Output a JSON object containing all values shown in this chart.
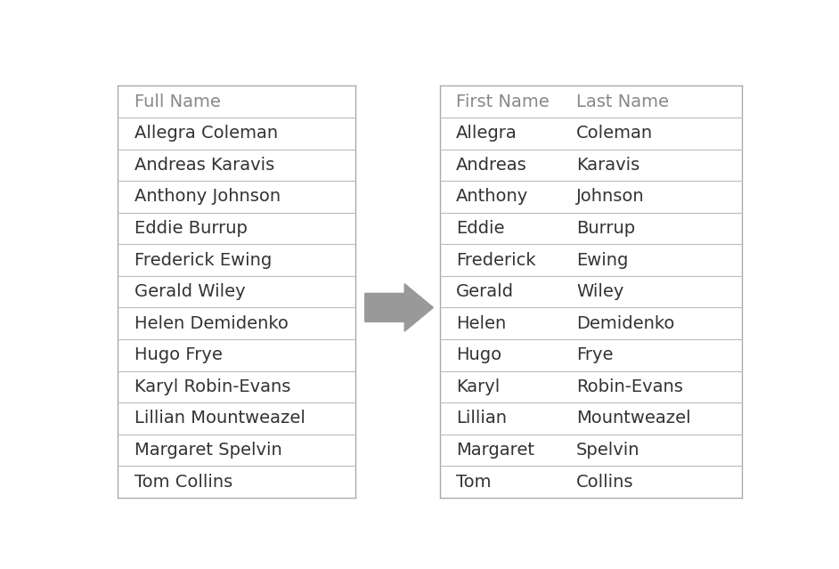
{
  "full_names": [
    "Allegra Coleman",
    "Andreas Karavis",
    "Anthony Johnson",
    "Eddie Burrup",
    "Frederick Ewing",
    "Gerald Wiley",
    "Helen Demidenko",
    "Hugo Frye",
    "Karyl Robin-Evans",
    "Lillian Mountweazel",
    "Margaret Spelvin",
    "Tom Collins"
  ],
  "first_names": [
    "Allegra",
    "Andreas",
    "Anthony",
    "Eddie",
    "Frederick",
    "Gerald",
    "Helen",
    "Hugo",
    "Karyl",
    "Lillian",
    "Margaret",
    "Tom"
  ],
  "last_names": [
    "Coleman",
    "Karavis",
    "Johnson",
    "Burrup",
    "Ewing",
    "Wiley",
    "Demidenko",
    "Frye",
    "Robin-Evans",
    "Mountweazel",
    "Spelvin",
    "Collins"
  ],
  "left_header": "Full Name",
  "right_header1": "First Name",
  "right_header2": "Last Name",
  "bg_color": "#ffffff",
  "header_color": "#888888",
  "data_color": "#333333",
  "line_color": "#bbbbbb",
  "border_color": "#aaaaaa",
  "arrow_color": "#999999",
  "font_size": 14,
  "header_font_size": 14
}
